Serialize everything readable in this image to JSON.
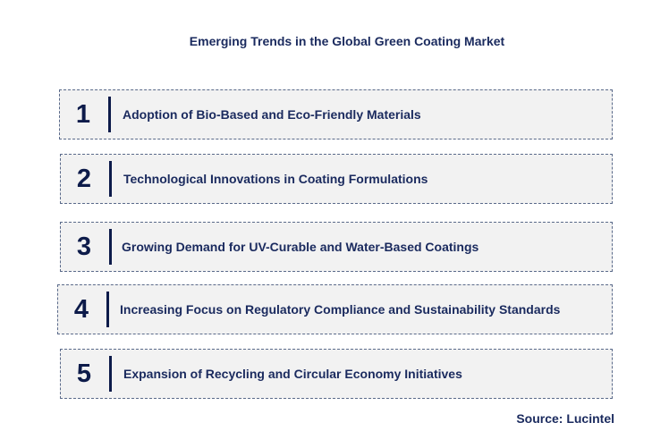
{
  "title": "Emerging Trends in the Global Green Coating Market",
  "trends": [
    {
      "number": "1",
      "label": "Adoption of Bio-Based and Eco-Friendly Materials"
    },
    {
      "number": "2",
      "label": "Technological Innovations in Coating Formulations"
    },
    {
      "number": "3",
      "label": "Growing Demand for UV-Curable and Water-Based Coatings"
    },
    {
      "number": "4",
      "label": "Increasing Focus on Regulatory Compliance and Sustainability Standards"
    },
    {
      "number": "5",
      "label": "Expansion of Recycling and Circular Economy Initiatives"
    }
  ],
  "source": "Source: Lucintel"
}
